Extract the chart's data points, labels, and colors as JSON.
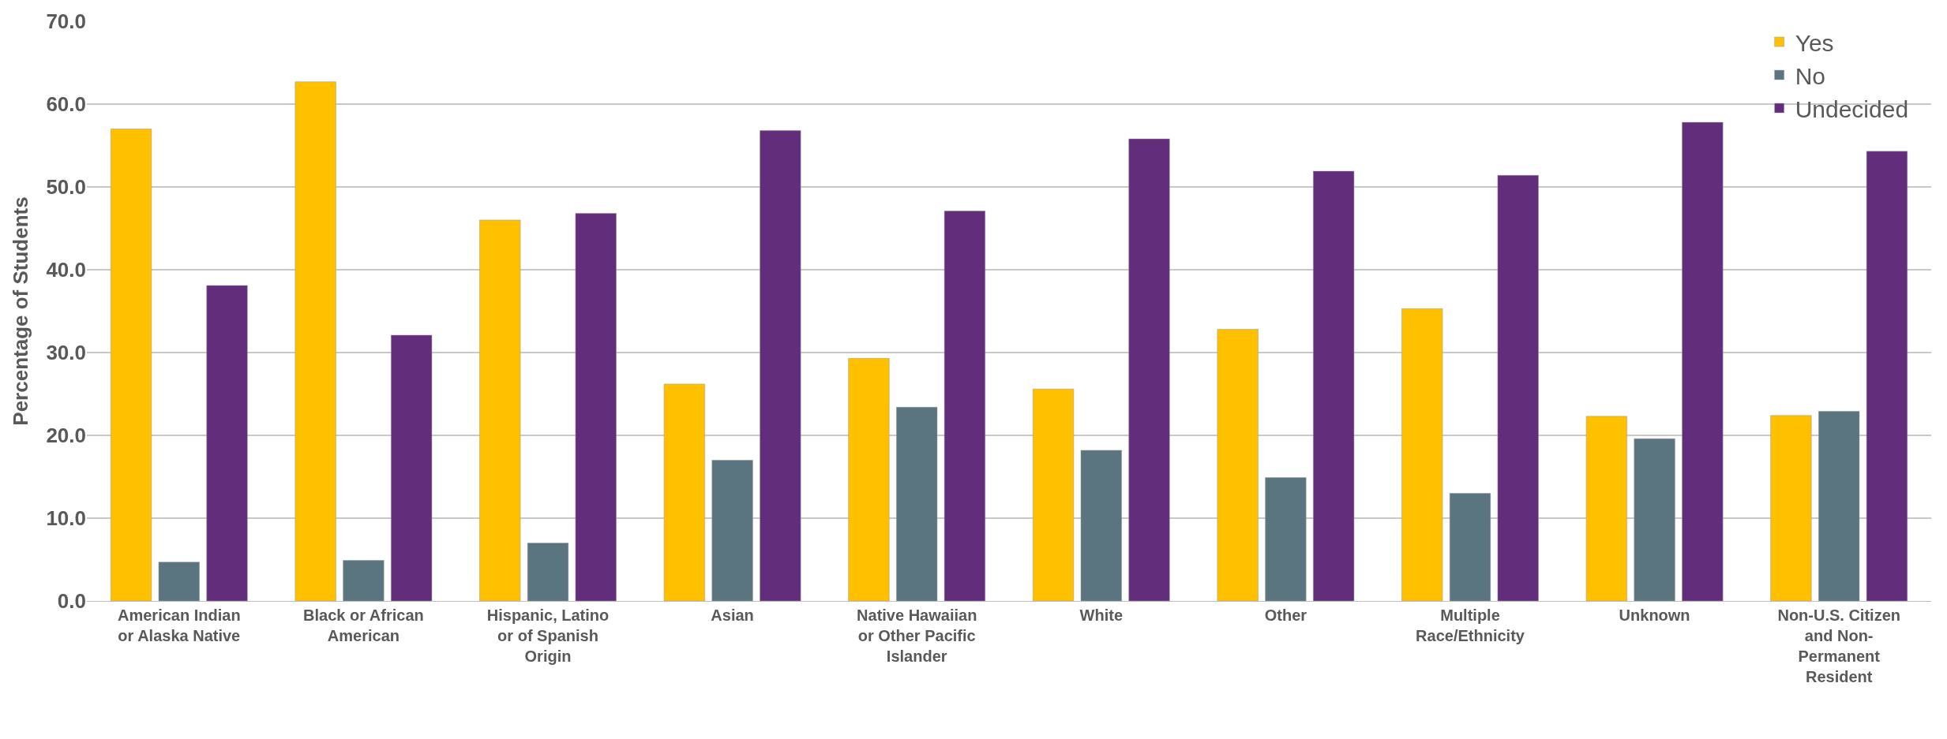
{
  "chart_data": {
    "type": "bar",
    "ylabel": "Percentage of Students",
    "categories": [
      "American Indian or Alaska Native",
      "Black or African American",
      "Hispanic, Latino or of Spanish Origin",
      "Asian",
      "Native Hawaiian or Other Pacific Islander",
      "White",
      "Other",
      "Multiple Race/Ethnicity",
      "Unknown",
      "Non-U.S. Citizen and Non-Permanent Resident"
    ],
    "series": [
      {
        "name": "Yes",
        "color": "#ffc000",
        "values": [
          57.0,
          62.7,
          46.0,
          26.2,
          29.3,
          25.6,
          32.8,
          35.3,
          22.3,
          22.4
        ]
      },
      {
        "name": "No",
        "color": "#5b7580",
        "values": [
          4.7,
          4.9,
          7.0,
          17.0,
          23.4,
          18.2,
          14.9,
          13.0,
          19.6,
          22.9
        ]
      },
      {
        "name": "Undecided",
        "color": "#622d7a",
        "values": [
          38.1,
          32.1,
          46.8,
          56.8,
          47.1,
          55.8,
          51.9,
          51.4,
          57.8,
          54.3
        ]
      }
    ],
    "ylim": [
      0,
      70
    ],
    "yticks": [
      {
        "value": 0,
        "label": "0.0"
      },
      {
        "value": 10,
        "label": "10.0"
      },
      {
        "value": 20,
        "label": "20.0"
      },
      {
        "value": 30,
        "label": "30.0"
      },
      {
        "value": 40,
        "label": "40.0"
      },
      {
        "value": 50,
        "label": "50.0"
      },
      {
        "value": 60,
        "label": "60.0"
      },
      {
        "value": 70,
        "label": "70.0"
      }
    ],
    "grid": "y",
    "legend": "top right"
  }
}
